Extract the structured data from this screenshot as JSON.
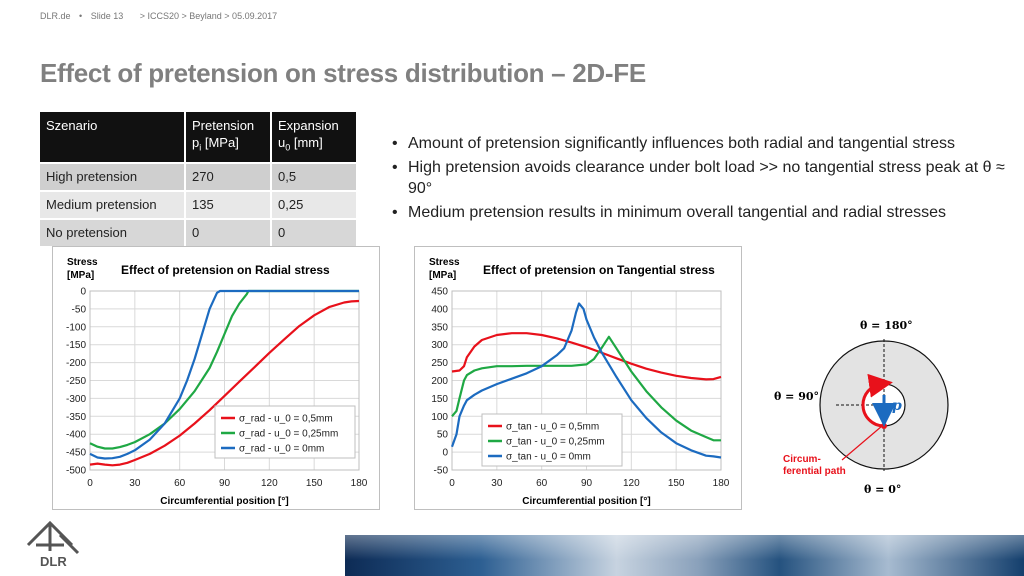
{
  "header": {
    "site": "DLR.de",
    "separator": "•",
    "slide": "Slide 13",
    "path": "> ICCS20 > Beyland > 05.09.2017"
  },
  "title": "Effect of pretension on stress distribution – 2D-FE",
  "table": {
    "headers": [
      {
        "l1": "Szenario",
        "l2": ""
      },
      {
        "l1": "Pretension",
        "l2": "pi [MPa]"
      },
      {
        "l1": "Expansion",
        "l2": "u0 [mm]"
      }
    ],
    "rows": [
      [
        "High pretension",
        "270",
        "0,5"
      ],
      [
        "Medium pretension",
        "135",
        "0,25"
      ],
      [
        "No pretension",
        "0",
        "0"
      ]
    ]
  },
  "bullets": [
    "Amount of pretension significantly influences both radial and tangential stress",
    "High pretension avoids clearance under bolt load >> no tangential stress peak at θ ≈ 90°",
    "Medium pretension results in minimum overall tangential and radial stresses"
  ],
  "chart_data": [
    {
      "type": "line",
      "title": "Effect of pretension on Radial stress",
      "ylabel": "Stress [MPa]",
      "xlabel": "Circumferential position [°]",
      "xlim": [
        0,
        180
      ],
      "ylim": [
        -500,
        0
      ],
      "xticks": [
        0,
        30,
        60,
        90,
        120,
        150,
        180
      ],
      "yticks": [
        0,
        -50,
        -100,
        -150,
        -200,
        -250,
        -300,
        -350,
        -400,
        -450,
        -500
      ],
      "grid": true,
      "legend": "bottom-right",
      "series": [
        {
          "name": "σ_rad - u_0 = 0,5mm",
          "color": "#e8111b",
          "x": [
            0,
            5,
            10,
            15,
            20,
            25,
            30,
            40,
            50,
            60,
            70,
            80,
            90,
            100,
            110,
            120,
            130,
            140,
            150,
            160,
            170,
            175,
            180
          ],
          "y": [
            -485,
            -482,
            -485,
            -487,
            -485,
            -480,
            -472,
            -455,
            -432,
            -404,
            -370,
            -333,
            -293,
            -253,
            -213,
            -173,
            -135,
            -98,
            -68,
            -45,
            -32,
            -29,
            -28
          ]
        },
        {
          "name": "σ_rad - u_0 = 0,25mm",
          "color": "#1fa844",
          "x": [
            0,
            5,
            10,
            15,
            20,
            25,
            30,
            40,
            50,
            60,
            70,
            80,
            85,
            90,
            95,
            100,
            105,
            106,
            180
          ],
          "y": [
            -425,
            -435,
            -440,
            -440,
            -436,
            -430,
            -422,
            -400,
            -370,
            -330,
            -280,
            -215,
            -170,
            -120,
            -70,
            -35,
            -8,
            0,
            0
          ]
        },
        {
          "name": "σ_rad - u_0 = 0mm",
          "color": "#1c6bc0",
          "x": [
            0,
            5,
            10,
            15,
            20,
            25,
            30,
            40,
            50,
            60,
            65,
            70,
            75,
            80,
            85,
            87,
            180
          ],
          "y": [
            -455,
            -465,
            -468,
            -467,
            -463,
            -455,
            -445,
            -415,
            -370,
            -300,
            -250,
            -190,
            -120,
            -50,
            -5,
            0,
            0
          ]
        }
      ]
    },
    {
      "type": "line",
      "title": "Effect of pretension on Tangential stress",
      "ylabel": "Stress [MPa]",
      "xlabel": "Circumferential position [°]",
      "xlim": [
        0,
        180
      ],
      "ylim": [
        -50,
        450
      ],
      "xticks": [
        0,
        30,
        60,
        90,
        120,
        150,
        180
      ],
      "yticks": [
        450,
        400,
        350,
        300,
        250,
        200,
        150,
        100,
        50,
        0,
        -50
      ],
      "grid": true,
      "legend": "bottom-left",
      "series": [
        {
          "name": "σ_tan - u_0 = 0,5mm",
          "color": "#e8111b",
          "x": [
            0,
            5,
            8,
            10,
            15,
            20,
            30,
            40,
            50,
            60,
            70,
            80,
            90,
            100,
            110,
            120,
            130,
            140,
            150,
            160,
            170,
            175,
            180
          ],
          "y": [
            225,
            228,
            240,
            265,
            295,
            313,
            327,
            332,
            332,
            327,
            318,
            306,
            293,
            278,
            262,
            247,
            233,
            222,
            213,
            207,
            203,
            204,
            210
          ]
        },
        {
          "name": "σ_tan - u_0 = 0,25mm",
          "color": "#1fa844",
          "x": [
            0,
            3,
            5,
            8,
            10,
            15,
            20,
            30,
            40,
            50,
            60,
            70,
            80,
            90,
            95,
            100,
            105,
            110,
            120,
            130,
            140,
            150,
            160,
            170,
            175,
            180
          ],
          "y": [
            100,
            115,
            150,
            200,
            215,
            228,
            234,
            240,
            240,
            241,
            241,
            241,
            241,
            245,
            260,
            290,
            322,
            290,
            225,
            170,
            125,
            88,
            60,
            42,
            33,
            33
          ]
        },
        {
          "name": "σ_tan - u_0 = 0mm",
          "color": "#1c6bc0",
          "x": [
            0,
            3,
            5,
            8,
            10,
            15,
            20,
            30,
            40,
            50,
            60,
            70,
            75,
            80,
            83,
            85,
            88,
            90,
            95,
            100,
            110,
            120,
            130,
            140,
            150,
            160,
            170,
            175,
            180
          ],
          "y": [
            15,
            50,
            100,
            130,
            145,
            160,
            172,
            190,
            205,
            220,
            240,
            270,
            290,
            340,
            390,
            415,
            400,
            370,
            320,
            280,
            210,
            145,
            95,
            55,
            25,
            5,
            -10,
            -12,
            -15
          ]
        }
      ]
    }
  ],
  "diagram": {
    "top_label": "θ = 180°",
    "left_label": "θ = 90°",
    "bottom_label": "θ = 0°",
    "p_label": "p",
    "path_label_line1": "Circum-",
    "path_label_line2": "ferential path"
  },
  "footer": {
    "logo_text": "DLR"
  },
  "colors": {
    "red": "#e8111b",
    "green": "#1fa844",
    "blue": "#1c6bc0",
    "title_gray": "#808080"
  }
}
